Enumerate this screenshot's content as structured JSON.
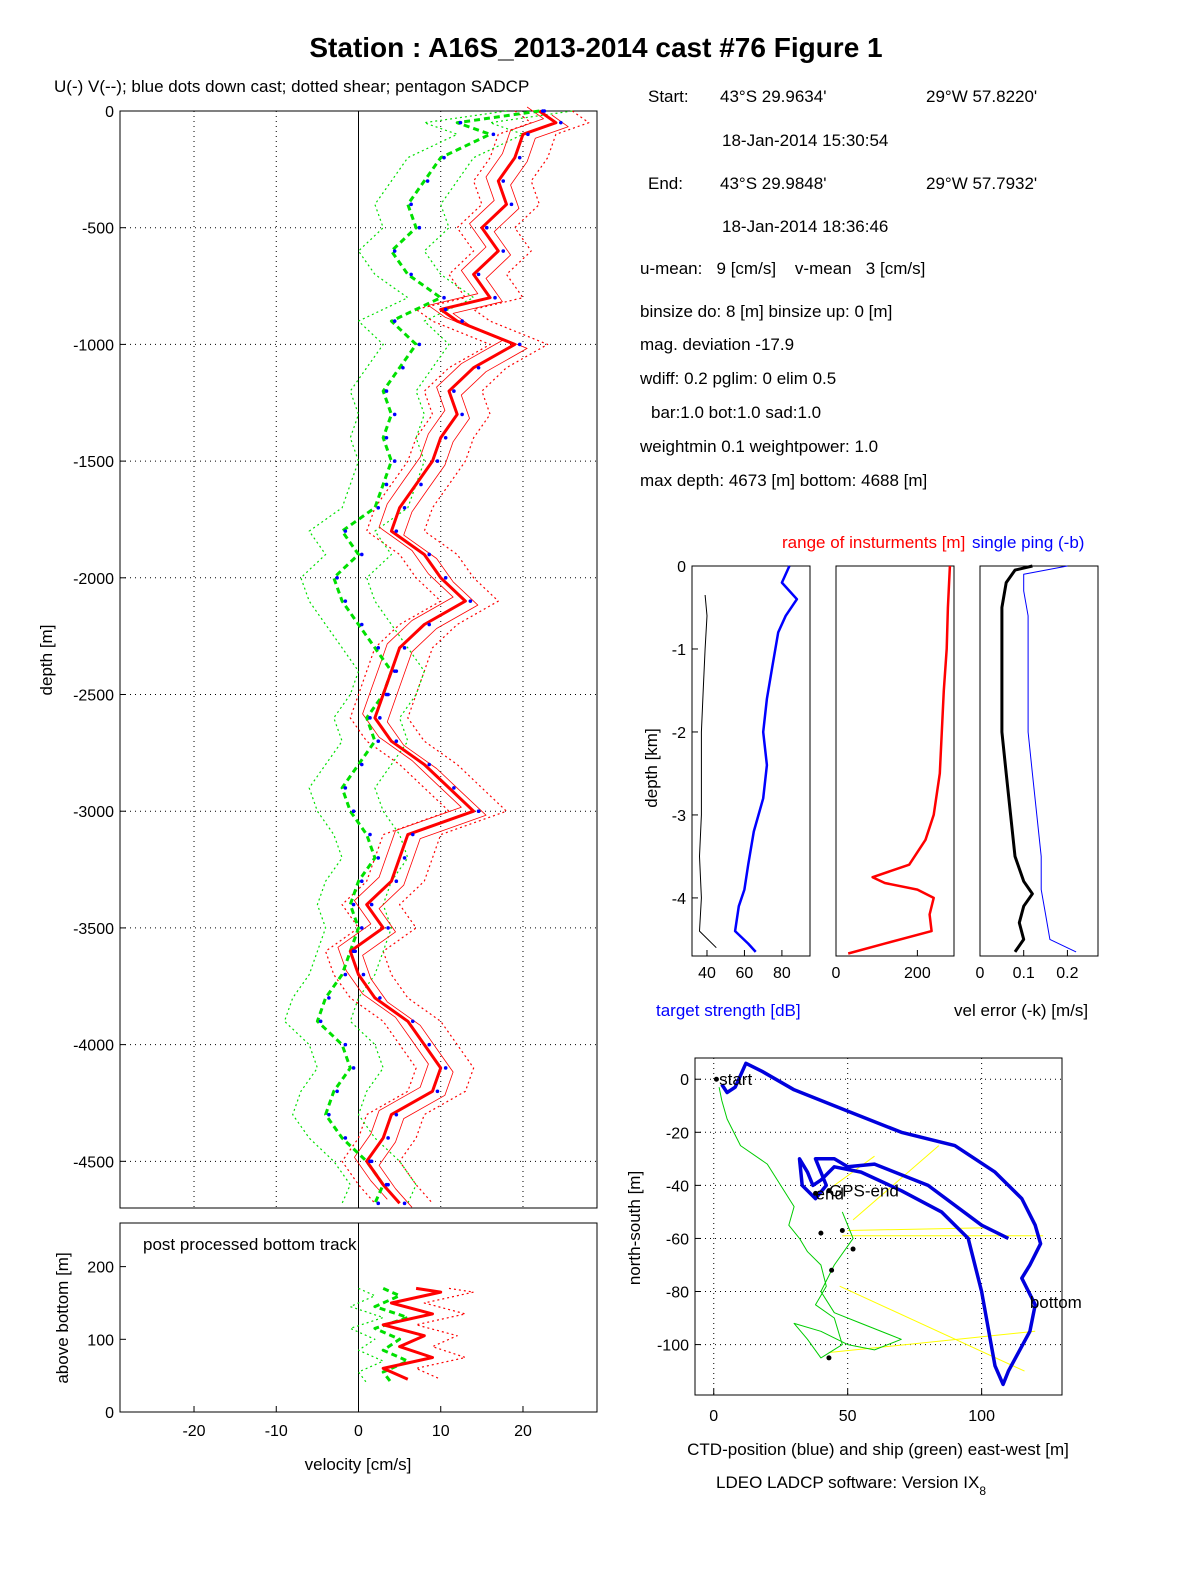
{
  "figure": {
    "title": "Station : A16S_2013-2014 cast #76  Figure 1",
    "software_main": "LDEO LADCP software: Version IX",
    "software_sub": "8"
  },
  "info_block": {
    "start_label": "Start:",
    "start_lat": "43°S 29.9634'",
    "start_lon": "29°W 57.8220'",
    "start_time": "18-Jan-2014 15:30:54",
    "end_label": "End:",
    "end_lat": "43°S 29.9848'",
    "end_lon": "29°W 57.7932'",
    "end_time": "18-Jan-2014 18:36:46",
    "means": "u-mean:   9 [cm/s]    v-mean   3 [cm/s]",
    "binsize": "binsize do: 8 [m]  binsize up:  0 [m]",
    "mag": "mag. deviation -17.9",
    "wdiff": "wdiff: 0.2  pglim: 0  elim 0.5",
    "bar": "bar:1.0 bot:1.0 sad:1.0",
    "weight": "weightmin 0.1  weightpower: 1.0",
    "depth": "max depth: 4673 [m]   bottom: 4688 [m]"
  },
  "colors": {
    "u": "#ff0000",
    "v": "#00e000",
    "dots": "#0000ff",
    "track_ctd": "#0000dd",
    "track_ship": "#00cc00",
    "links": "#ffff00",
    "black": "#000000"
  },
  "chart_data": [
    {
      "id": "velocity_profile",
      "type": "line",
      "subtitle": "U(-) V(--); blue dots down cast; dotted shear; pentagon SADCP",
      "xlabel": "velocity [cm/s]",
      "ylabel": "depth [m]",
      "xlim": [
        -29,
        29
      ],
      "ylim": [
        -4700,
        0
      ],
      "xticks": [
        "-20",
        "-10",
        "0",
        "10",
        "20"
      ],
      "yticks": [
        "0",
        "-500",
        "-1000",
        "-1500",
        "-2000",
        "-2500",
        "-3000",
        "-3500",
        "-4000",
        "-4500"
      ],
      "grid": true,
      "series": [
        {
          "key": "u",
          "depth": [
            0,
            -50,
            -100,
            -200,
            -300,
            -400,
            -500,
            -600,
            -700,
            -800,
            -850,
            -900,
            -1000,
            -1100,
            -1200,
            -1300,
            -1400,
            -1500,
            -1600,
            -1700,
            -1800,
            -1900,
            -2000,
            -2100,
            -2200,
            -2300,
            -2400,
            -2500,
            -2600,
            -2700,
            -2800,
            -2900,
            -3000,
            -3100,
            -3200,
            -3300,
            -3400,
            -3500,
            -3600,
            -3700,
            -3800,
            -3900,
            -4000,
            -4100,
            -4200,
            -4300,
            -4400,
            -4500,
            -4600,
            -4680
          ],
          "values": [
            22,
            24,
            20,
            19,
            17,
            18,
            15,
            17,
            14,
            16,
            10,
            12,
            19,
            14,
            11,
            12,
            10,
            9,
            7,
            5,
            4,
            8,
            10,
            13,
            8,
            5,
            4,
            3,
            2,
            4,
            8,
            11,
            14,
            6,
            5,
            4,
            1,
            3,
            -1,
            0,
            2,
            6,
            8,
            10,
            9,
            4,
            3,
            1,
            3,
            5
          ]
        },
        {
          "key": "v",
          "depth": [
            0,
            -50,
            -100,
            -200,
            -300,
            -400,
            -500,
            -600,
            -700,
            -800,
            -900,
            -1000,
            -1100,
            -1200,
            -1300,
            -1400,
            -1500,
            -1600,
            -1700,
            -1800,
            -1900,
            -2000,
            -2100,
            -2200,
            -2300,
            -2400,
            -2500,
            -2600,
            -2700,
            -2800,
            -2900,
            -3000,
            -3100,
            -3200,
            -3300,
            -3400,
            -3500,
            -3600,
            -3700,
            -3800,
            -3900,
            -4000,
            -4100,
            -4200,
            -4300,
            -4400,
            -4500,
            -4600,
            -4680
          ],
          "values": [
            22,
            12,
            16,
            10,
            8,
            6,
            7,
            4,
            6,
            10,
            4,
            7,
            5,
            3,
            4,
            3,
            4,
            3,
            2,
            -2,
            0,
            -3,
            -2,
            0,
            2,
            4,
            3,
            1,
            2,
            0,
            -2,
            -1,
            1,
            2,
            0,
            -1,
            0,
            -1,
            -2,
            -4,
            -5,
            -2,
            -1,
            -3,
            -4,
            -2,
            1,
            3,
            2
          ]
        }
      ]
    },
    {
      "id": "bottom_track",
      "type": "line",
      "annotation": "post processed bottom track",
      "xlabel": "velocity [cm/s]",
      "ylabel": "above bottom [m]",
      "xlim": [
        -29,
        29
      ],
      "ylim": [
        0,
        260
      ],
      "yticks": [
        "0",
        "100",
        "200"
      ],
      "series": [
        {
          "key": "u",
          "height": [
            170,
            165,
            150,
            135,
            120,
            105,
            90,
            75,
            60,
            45
          ],
          "values": [
            7,
            10,
            4,
            9,
            3,
            8,
            5,
            9,
            3,
            6
          ]
        },
        {
          "key": "v",
          "height": [
            170,
            160,
            145,
            130,
            115,
            100,
            85,
            70,
            55,
            40
          ],
          "values": [
            3,
            5,
            2,
            6,
            2,
            5,
            3,
            6,
            3,
            4
          ]
        }
      ]
    },
    {
      "id": "target_strength",
      "type": "line",
      "ylabel": "depth [km]",
      "xlabel": "target strength [dB]",
      "xlim": [
        32,
        95
      ],
      "ylim": [
        -4.7,
        0
      ],
      "xticks": [
        "40",
        "60",
        "80"
      ],
      "yticks": [
        "0",
        "-1",
        "-2",
        "-3",
        "-4"
      ],
      "series": [
        {
          "key": "strength",
          "depth": [
            0,
            -0.2,
            -0.4,
            -0.6,
            -0.8,
            -1.2,
            -1.6,
            -2.0,
            -2.4,
            -2.8,
            -3.2,
            -3.6,
            -3.9,
            -4.1,
            -4.4,
            -4.55,
            -4.65
          ],
          "values": [
            84,
            80,
            88,
            82,
            78,
            75,
            72,
            70,
            72,
            70,
            65,
            62,
            60,
            57,
            55,
            62,
            66
          ]
        },
        {
          "key": "noise",
          "depth": [
            -0.35,
            -0.6,
            -1.0,
            -1.5,
            -2.0,
            -2.5,
            -3.0,
            -3.5,
            -4.0,
            -4.4,
            -4.6
          ],
          "values": [
            39,
            40,
            39,
            38,
            37,
            37,
            37,
            36,
            37,
            36,
            45
          ]
        }
      ]
    },
    {
      "id": "instrument_range",
      "type": "line",
      "title": "range of insturments [m]",
      "xlim": [
        0,
        290
      ],
      "ylim": [
        -4.7,
        0
      ],
      "xticks": [
        "0",
        "200"
      ],
      "series": [
        {
          "key": "range",
          "depth": [
            0,
            -0.5,
            -1.0,
            -1.5,
            -2.0,
            -2.5,
            -3.0,
            -3.3,
            -3.6,
            -3.75,
            -3.82,
            -3.9,
            -4.0,
            -4.2,
            -4.4,
            -4.55,
            -4.67
          ],
          "values": [
            280,
            275,
            272,
            265,
            260,
            255,
            240,
            220,
            180,
            90,
            120,
            200,
            240,
            230,
            235,
            120,
            30
          ]
        }
      ]
    },
    {
      "id": "velocity_error",
      "type": "line",
      "title": "single ping (-b)",
      "xlabel": "vel error (-k) [m/s]",
      "xlim": [
        0,
        0.27
      ],
      "ylim": [
        -4.7,
        0
      ],
      "xticks": [
        "0",
        "0.1",
        "0.2"
      ],
      "series": [
        {
          "key": "error_k",
          "depth": [
            0,
            -0.05,
            -0.2,
            -0.5,
            -1.0,
            -1.5,
            -2.0,
            -2.5,
            -3.0,
            -3.5,
            -3.8,
            -3.95,
            -4.1,
            -4.3,
            -4.5,
            -4.65
          ],
          "values": [
            0.12,
            0.08,
            0.06,
            0.05,
            0.05,
            0.05,
            0.05,
            0.06,
            0.07,
            0.08,
            0.1,
            0.12,
            0.1,
            0.09,
            0.1,
            0.08
          ]
        },
        {
          "key": "single_ping",
          "depth": [
            0,
            -0.1,
            -0.3,
            -0.6,
            -1.0,
            -1.5,
            -2.0,
            -2.5,
            -3.0,
            -3.5,
            -3.9,
            -4.2,
            -4.5,
            -4.65
          ],
          "values": [
            0.2,
            0.1,
            0.1,
            0.11,
            0.11,
            0.11,
            0.11,
            0.12,
            0.13,
            0.14,
            0.14,
            0.15,
            0.16,
            0.22
          ]
        }
      ]
    },
    {
      "id": "position_track",
      "type": "line",
      "xlabel": "CTD-position (blue) and ship (green) east-west [m]",
      "ylabel": "north-south [m]",
      "xlim": [
        -7,
        130
      ],
      "ylim": [
        -119,
        8
      ],
      "xticks": [
        "0",
        "50",
        "100"
      ],
      "yticks": [
        "0",
        "-20",
        "-40",
        "-60",
        "-80",
        "-100"
      ],
      "annotations": [
        {
          "text": "start",
          "x": 2,
          "y": 0
        },
        {
          "text": "GPS-end",
          "x": 43,
          "y": -42
        },
        {
          "text": "end",
          "x": 38,
          "y": -43
        },
        {
          "text": "bottom",
          "x": 118,
          "y": -84
        }
      ],
      "series": [
        {
          "key": "ctd",
          "x": [
            3,
            5,
            8,
            12,
            18,
            30,
            50,
            70,
            90,
            105,
            115,
            120,
            122,
            118,
            115,
            120,
            118,
            110,
            108,
            105,
            100,
            95,
            85,
            70,
            55,
            45,
            40,
            37,
            35,
            32,
            33,
            38,
            42,
            40,
            38,
            45,
            50,
            60,
            80,
            100,
            110
          ],
          "y": [
            -2,
            -5,
            -3,
            6,
            3,
            -4,
            -12,
            -20,
            -25,
            -35,
            -45,
            -55,
            -62,
            -70,
            -75,
            -85,
            -95,
            -110,
            -115,
            -108,
            -80,
            -60,
            -50,
            -42,
            -35,
            -33,
            -38,
            -40,
            -35,
            -30,
            -40,
            -45,
            -40,
            -35,
            -30,
            -30,
            -33,
            -32,
            -40,
            -55,
            -60
          ]
        },
        {
          "key": "ship",
          "x": [
            2,
            3,
            5,
            10,
            20,
            25,
            30,
            28,
            32,
            35,
            40,
            42,
            38,
            45,
            48,
            40,
            35,
            30,
            40,
            50,
            60,
            70,
            65,
            55,
            45,
            40,
            45,
            52,
            48
          ],
          "y": [
            -3,
            -8,
            -15,
            -25,
            -32,
            -40,
            -48,
            -55,
            -60,
            -65,
            -70,
            -78,
            -85,
            -90,
            -100,
            -105,
            -98,
            -92,
            -95,
            -100,
            -102,
            -98,
            -96,
            -92,
            -88,
            -80,
            -70,
            -60,
            -50
          ]
        }
      ],
      "links": [
        {
          "x": [
            84,
            52
          ],
          "y": [
            -25,
            -53
          ]
        },
        {
          "x": [
            60,
            45
          ],
          "y": [
            -29,
            -40
          ]
        },
        {
          "x": [
            102,
            50
          ],
          "y": [
            -56,
            -57
          ]
        },
        {
          "x": [
            123,
            48
          ],
          "y": [
            -59,
            -59
          ]
        },
        {
          "x": [
            120,
            43
          ],
          "y": [
            -95,
            -103
          ]
        },
        {
          "x": [
            116,
            47
          ],
          "y": [
            -110,
            -78
          ]
        }
      ],
      "markers": [
        {
          "x": 1,
          "y": 0
        },
        {
          "x": 43,
          "y": -42
        },
        {
          "x": 38,
          "y": -43
        },
        {
          "x": 52,
          "y": -64
        },
        {
          "x": 44,
          "y": -72
        },
        {
          "x": 43,
          "y": -105
        },
        {
          "x": 48,
          "y": -57
        },
        {
          "x": 40,
          "y": -58
        }
      ]
    }
  ]
}
